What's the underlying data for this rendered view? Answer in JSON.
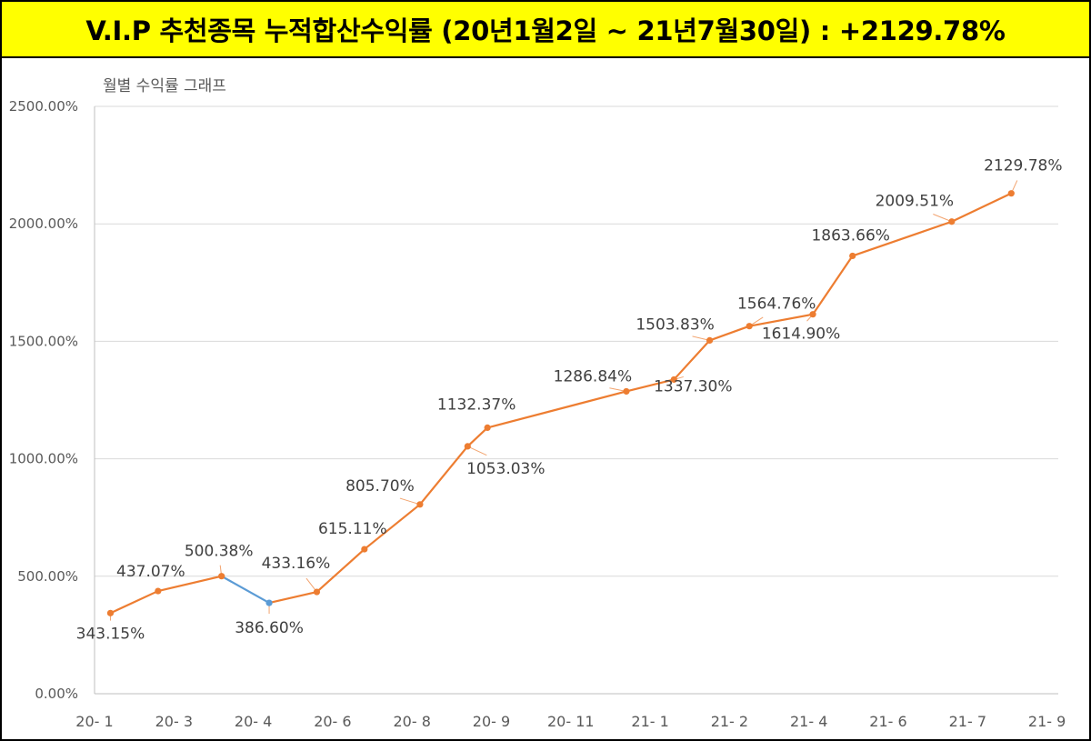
{
  "header": {
    "title": "V.I.P 추천종목 누적합산수익률 (20년1월2일  ~ 21년7월30일) : +2129.78%"
  },
  "colors": {
    "header_bg": "#ffff00",
    "line": "#ed7d31",
    "line_down": "#5b9bd5",
    "grid": "#d9d9d9",
    "axis_text": "#595959",
    "label_text": "#404040"
  },
  "chart_data": {
    "type": "line",
    "title": "월별 수익률 그래프",
    "ylim": [
      0,
      2500
    ],
    "yticks": [
      "0.00%",
      "500.00%",
      "1000.00%",
      "1500.00%",
      "2000.00%",
      "2500.00%"
    ],
    "xticks": [
      "20- 1",
      "20- 3",
      "20- 4",
      "20- 6",
      "20- 8",
      "20- 9",
      "20- 11",
      "21- 1",
      "21- 2",
      "21- 4",
      "21- 6",
      "21- 7",
      "21- 9"
    ],
    "grid": true,
    "series": [
      {
        "points": [
          {
            "tick": 0.2,
            "value": 343.15,
            "label": "343.15%"
          },
          {
            "tick": 0.8,
            "value": 437.07,
            "label": "437.07%"
          },
          {
            "tick": 1.6,
            "value": 500.38,
            "label": "500.38%"
          },
          {
            "tick": 2.2,
            "value": 386.6,
            "label": "386.60%"
          },
          {
            "tick": 2.8,
            "value": 433.16,
            "label": "433.16%"
          },
          {
            "tick": 3.4,
            "value": 615.11,
            "label": "615.11%"
          },
          {
            "tick": 4.1,
            "value": 805.7,
            "label": "805.70%"
          },
          {
            "tick": 4.7,
            "value": 1053.03,
            "label": "1053.03%"
          },
          {
            "tick": 4.95,
            "value": 1132.37,
            "label": "1132.37%"
          },
          {
            "tick": 6.7,
            "value": 1286.84,
            "label": "1286.84%"
          },
          {
            "tick": 7.3,
            "value": 1337.3,
            "label": "1337.30%"
          },
          {
            "tick": 7.75,
            "value": 1503.83,
            "label": "1503.83%"
          },
          {
            "tick": 8.25,
            "value": 1564.76,
            "label": "1564.76%"
          },
          {
            "tick": 9.05,
            "value": 1614.9,
            "label": "1614.90%"
          },
          {
            "tick": 9.55,
            "value": 1863.66,
            "label": "1863.66%"
          },
          {
            "tick": 10.8,
            "value": 2009.51,
            "label": "2009.51%"
          },
          {
            "tick": 11.55,
            "value": 2129.78,
            "label": "2129.78%"
          }
        ]
      }
    ]
  }
}
